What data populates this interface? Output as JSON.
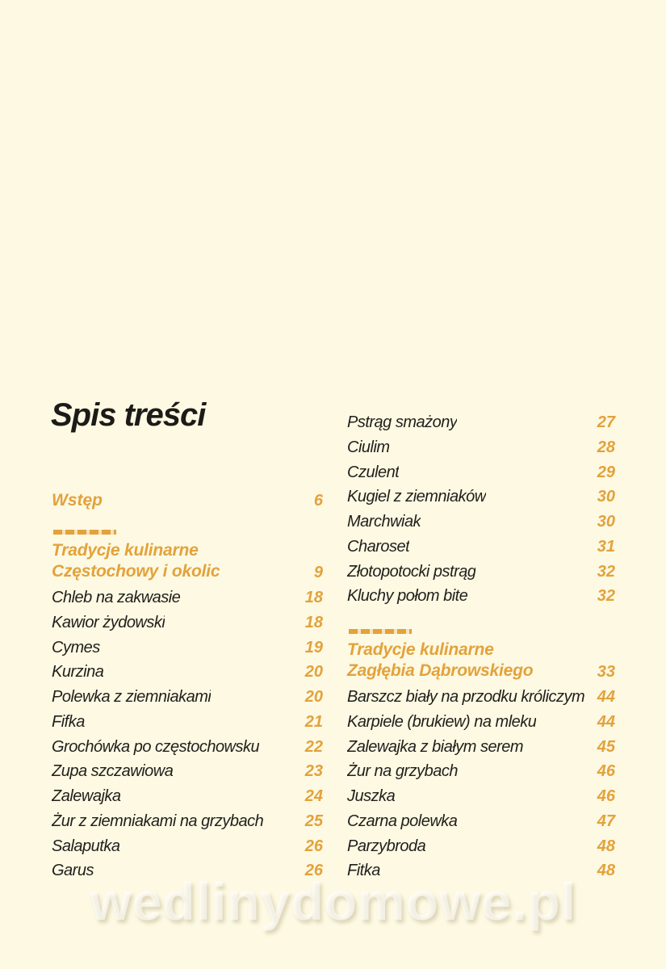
{
  "title": "Spis treści",
  "watermark": "wedlinydomowe.pl",
  "colors": {
    "background": "#FDF9E3",
    "accent": "#E3A23B",
    "text": "#201F1C"
  },
  "left_column": {
    "intro": {
      "label": "Wstęp",
      "page": "6"
    },
    "section": {
      "line1": "Tradycje kulinarne",
      "line2": "Częstochowy i okolic",
      "page": "9"
    },
    "items": [
      {
        "label": "Chleb na zakwasie",
        "page": "18"
      },
      {
        "label": "Kawior żydowski",
        "page": "18"
      },
      {
        "label": "Cymes",
        "page": "19"
      },
      {
        "label": "Kurzina",
        "page": "20"
      },
      {
        "label": "Polewka z ziemniakami",
        "page": "20"
      },
      {
        "label": "Fifka",
        "page": "21"
      },
      {
        "label": "Grochówka po częstochowsku",
        "page": "22"
      },
      {
        "label": "Zupa szczawiowa",
        "page": "23"
      },
      {
        "label": "Zalewajka",
        "page": "24"
      },
      {
        "label": "Żur z ziemniakami na grzybach",
        "page": "25"
      },
      {
        "label": "Salaputka",
        "page": "26"
      },
      {
        "label": "Garus",
        "page": "26"
      }
    ]
  },
  "right_column": {
    "items_top": [
      {
        "label": "Pstrąg smażony",
        "page": "27"
      },
      {
        "label": "Ciulim",
        "page": "28"
      },
      {
        "label": "Czulent",
        "page": "29"
      },
      {
        "label": "Kugiel z ziemniaków",
        "page": "30"
      },
      {
        "label": "Marchwiak",
        "page": "30"
      },
      {
        "label": "Charoset",
        "page": "31"
      },
      {
        "label": "Złotopotocki pstrąg",
        "page": "32"
      },
      {
        "label": "Kluchy połom bite",
        "page": "32"
      }
    ],
    "section": {
      "line1": "Tradycje kulinarne",
      "line2": "Zagłębia Dąbrowskiego",
      "page": "33"
    },
    "items": [
      {
        "label": "Barszcz biały na przodku króliczym",
        "page": "44"
      },
      {
        "label": "Karpiele (brukiew) na mleku",
        "page": "44"
      },
      {
        "label": "Zalewajka z białym serem",
        "page": "45"
      },
      {
        "label": "Żur na grzybach",
        "page": "46"
      },
      {
        "label": "Juszka",
        "page": "46"
      },
      {
        "label": "Czarna polewka",
        "page": "47"
      },
      {
        "label": "Parzybroda",
        "page": "48"
      },
      {
        "label": "Fitka",
        "page": "48"
      }
    ]
  }
}
